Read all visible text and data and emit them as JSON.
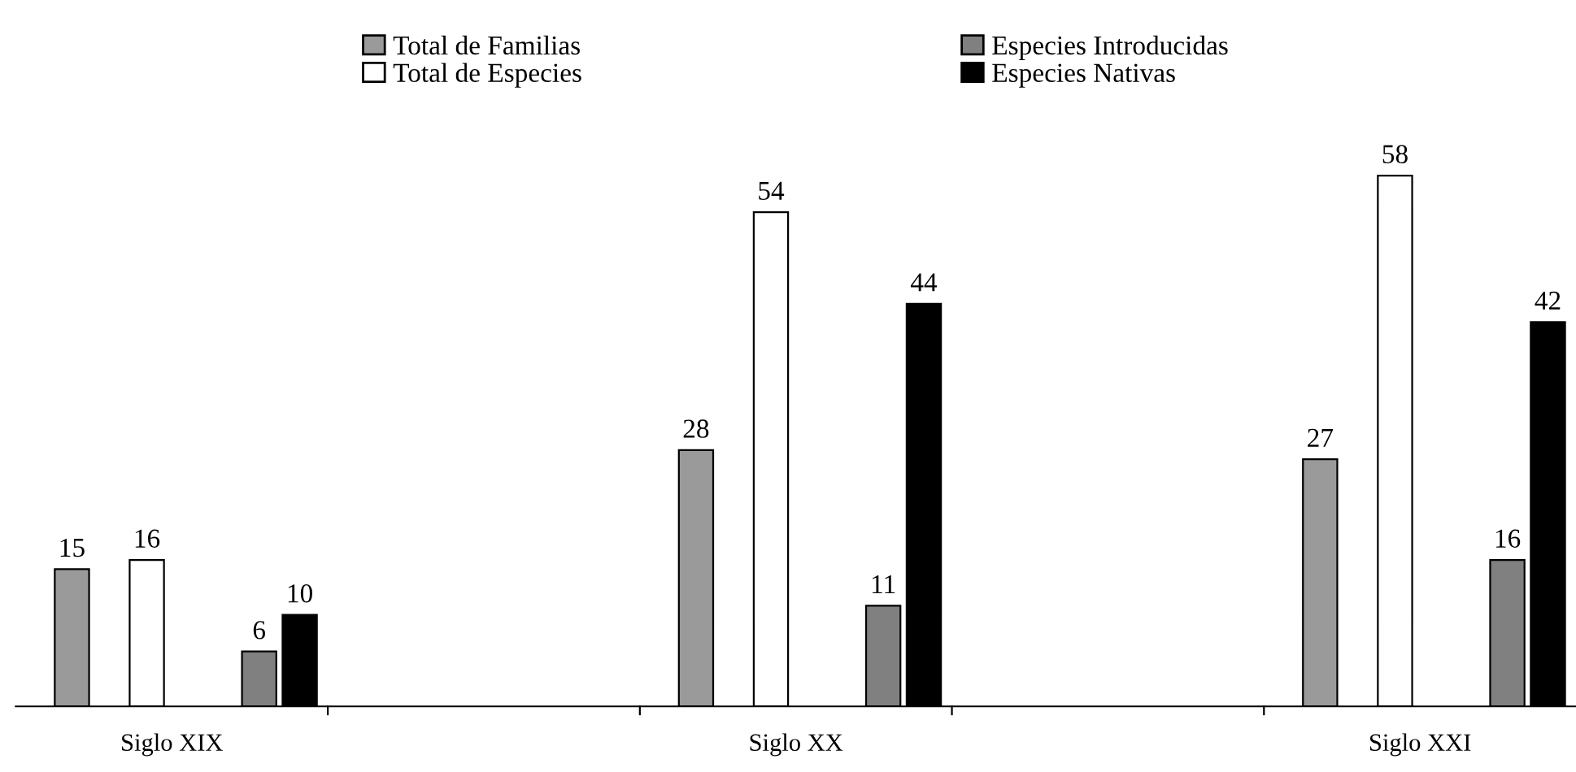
{
  "chart_data": {
    "type": "bar",
    "categories": [
      "Siglo XIX",
      "Siglo XX",
      "Siglo XXI"
    ],
    "series": [
      {
        "name": "Total de Familias",
        "color": "#9a9a9a",
        "values": [
          15,
          28,
          27
        ]
      },
      {
        "name": "Total de Especies",
        "color": "#ffffff",
        "values": [
          16,
          54,
          58
        ]
      },
      {
        "name": "Especies Introducidas",
        "color": "#808080",
        "values": [
          6,
          11,
          16
        ]
      },
      {
        "name": "Especies Nativas",
        "color": "#000000",
        "values": [
          10,
          44,
          42
        ]
      }
    ],
    "data_labels": true,
    "legend": "top"
  }
}
